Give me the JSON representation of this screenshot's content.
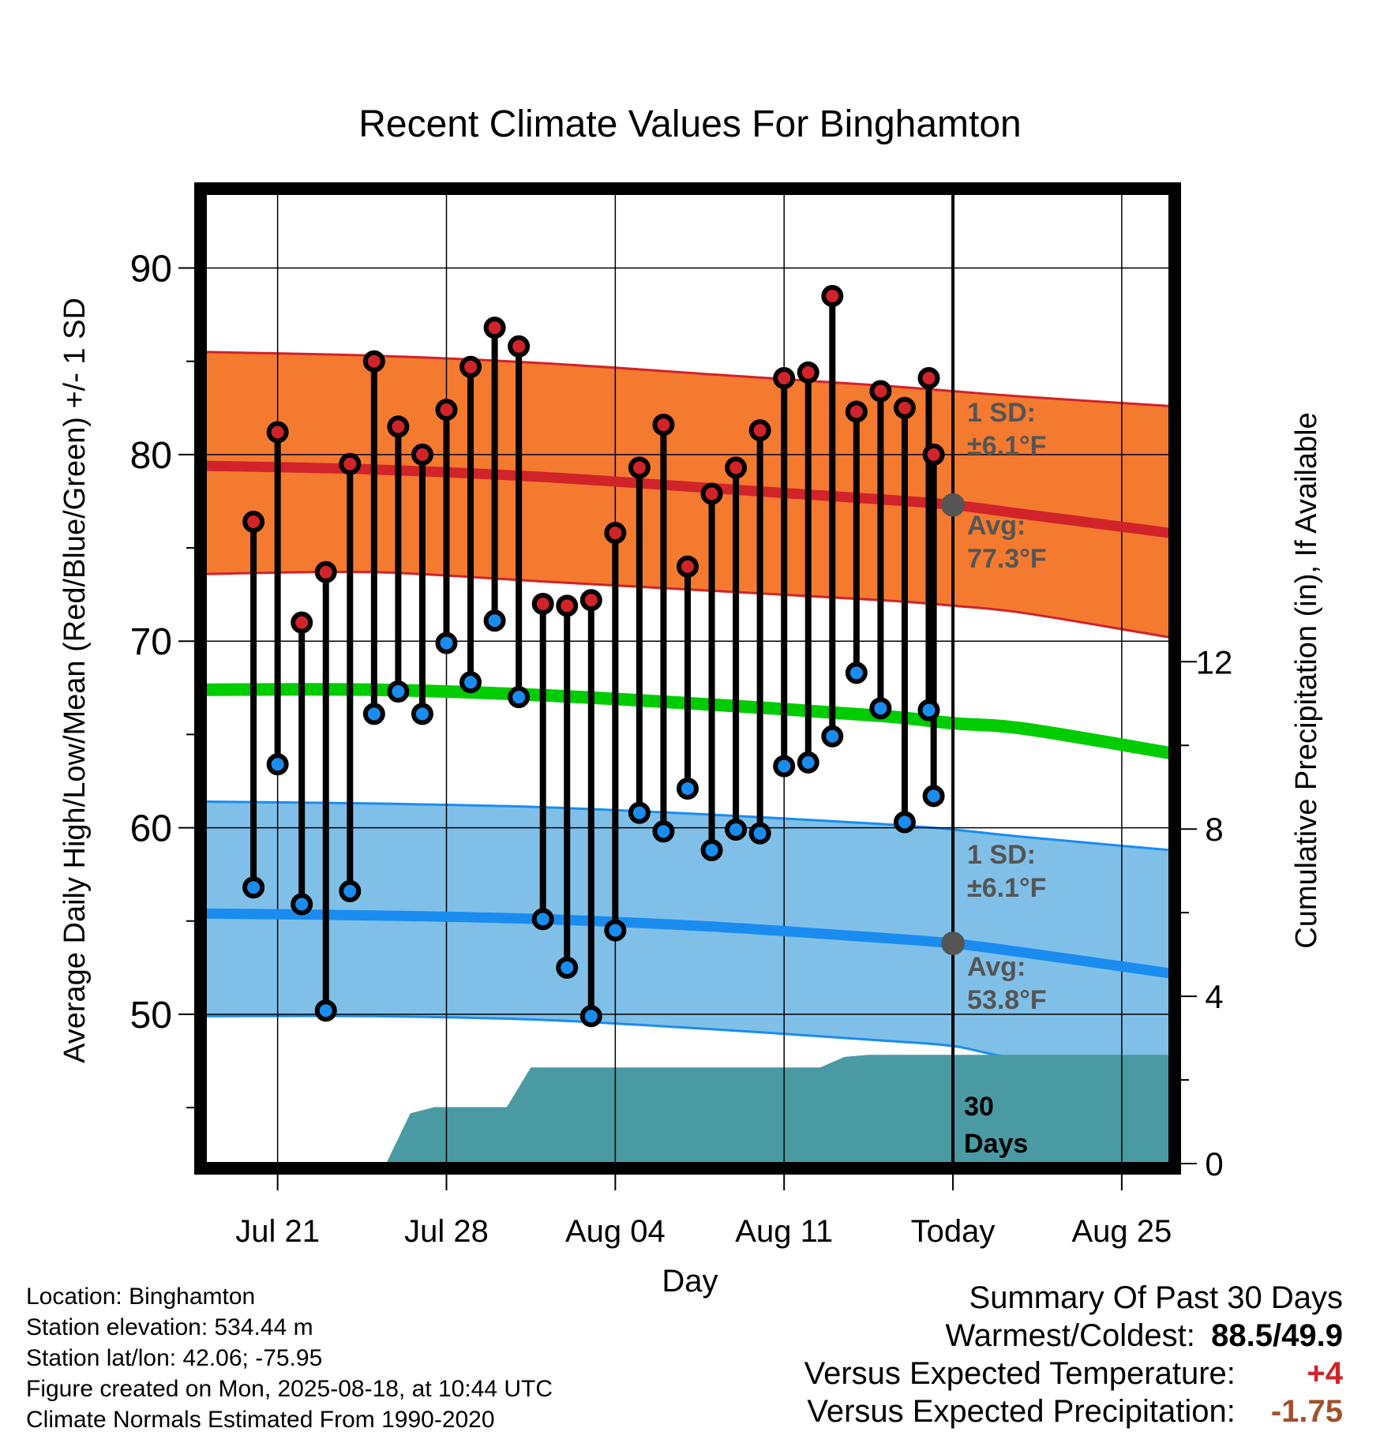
{
  "chart_data": {
    "type": "line",
    "title": "Recent Climate Values For Binghamton",
    "xlabel": "Day",
    "ylabel": "Average Daily High/Low/Mean (Red/Blue/Green) +/- 1 SD",
    "y2label": "Cumulative Precipitation (in), If Available",
    "x_tick_labels": [
      "Jul 21",
      "Jul 28",
      "Aug 04",
      "Aug 11",
      "Today",
      "Aug 25"
    ],
    "x_tick_days": [
      21,
      28,
      35,
      42,
      49,
      56
    ],
    "xlim": [
      18,
      58
    ],
    "ylim": [
      42,
      94
    ],
    "y_ticks": [
      50,
      60,
      70,
      80,
      90
    ],
    "y2lim": [
      0,
      23.2
    ],
    "y2_ticks": [
      0,
      4,
      8,
      12
    ],
    "today_day": 49,
    "daily_days": [
      20,
      21,
      22,
      23,
      24,
      25,
      26,
      27,
      28,
      29,
      30,
      31,
      32,
      33,
      34,
      35,
      36,
      37,
      38,
      39,
      40,
      41,
      42,
      43,
      44,
      45,
      46,
      47,
      48
    ],
    "daily_high": [
      76.4,
      81.2,
      71.0,
      73.7,
      79.5,
      85.0,
      81.5,
      80.0,
      82.4,
      84.7,
      86.8,
      85.8,
      72.0,
      71.9,
      72.2,
      75.8,
      79.3,
      81.6,
      74.0,
      77.9,
      79.3,
      81.3,
      84.1,
      84.4,
      88.5,
      82.3,
      83.4,
      82.5,
      84.1
    ],
    "daily_low": [
      56.8,
      63.4,
      55.9,
      50.2,
      56.6,
      66.1,
      67.3,
      66.1,
      69.9,
      67.8,
      71.1,
      67.0,
      55.1,
      52.5,
      49.9,
      54.5,
      60.8,
      59.8,
      62.1,
      58.8,
      59.9,
      59.7,
      63.3,
      63.5,
      64.9,
      68.3,
      66.4,
      60.3,
      66.3
    ],
    "daily_high_last": 80.0,
    "daily_low_last": 61.7,
    "normals_days": [
      18,
      25,
      32,
      39,
      46,
      49,
      52,
      58
    ],
    "avg_high": [
      79.4,
      79.2,
      78.8,
      78.2,
      77.6,
      77.3,
      76.8,
      75.8
    ],
    "high_sd_upper": [
      85.5,
      85.3,
      84.9,
      84.3,
      83.7,
      83.4,
      83.1,
      82.6
    ],
    "high_sd_lower": [
      73.6,
      73.7,
      73.2,
      72.7,
      72.2,
      71.9,
      71.5,
      70.2
    ],
    "avg_mean": [
      67.4,
      67.4,
      67.1,
      66.6,
      66.0,
      65.6,
      65.3,
      64.0
    ],
    "avg_low": [
      55.4,
      55.3,
      55.1,
      54.7,
      54.1,
      53.8,
      53.3,
      52.2
    ],
    "low_sd_upper": [
      61.4,
      61.3,
      61.1,
      60.7,
      60.2,
      59.9,
      59.5,
      58.8
    ],
    "low_sd_lower": [
      49.9,
      49.9,
      49.7,
      49.2,
      48.6,
      48.3,
      47.6,
      47.3
    ],
    "precip_days": [
      21.5,
      22.5,
      23.5,
      24.5,
      25.5,
      26.5,
      27.5,
      28.5,
      29.5,
      30.5,
      31.5,
      32.5,
      33.5,
      34.5,
      35.5,
      36.5,
      37.5,
      38.5,
      39.5,
      40.5,
      41.5,
      42.5,
      43.5,
      44.5,
      45.5,
      49,
      58
    ],
    "precip_cum": [
      0,
      0,
      0,
      0,
      0,
      1.2,
      1.35,
      1.35,
      1.35,
      1.35,
      2.3,
      2.3,
      2.3,
      2.3,
      2.3,
      2.3,
      2.3,
      2.3,
      2.3,
      2.3,
      2.3,
      2.3,
      2.3,
      2.55,
      2.6,
      2.6,
      2.6
    ],
    "high_annotation": {
      "sd_label": "1 SD:",
      "sd_value": "±6.1°F",
      "avg_label": "Avg:",
      "avg_value": "77.3°F"
    },
    "low_annotation": {
      "sd_label": "1 SD:",
      "sd_value": "±6.1°F",
      "avg_label": "Avg:",
      "avg_value": "53.8°F"
    },
    "period_label_1": "30",
    "period_label_2": "Days"
  },
  "colors": {
    "high_band": "#f47a30",
    "high_line": "#d0232a",
    "mean_line": "#00cc00",
    "low_band": "#80c0e8",
    "low_line": "#1a8cf0",
    "precip": "#4a9aa4",
    "high_dot": "#d0232a",
    "low_dot": "#1a8cf0",
    "annotation_text": "#555555",
    "warm_value": "#d0232a",
    "precip_value": "#a0522d"
  },
  "footer": {
    "location": "Location: Binghamton",
    "elevation": "Station elevation: 534.44 m",
    "latlon": "Station lat/lon: 42.06; -75.95",
    "created": "Figure created on Mon, 2025-08-18, at 10:44 UTC",
    "normals": "Climate Normals Estimated From 1990-2020"
  },
  "summary": {
    "title": "Summary Of Past 30 Days",
    "warm_cold_label": "Warmest/Coldest:",
    "warm_cold_value": "88.5/49.9",
    "temp_label": "Versus Expected Temperature:",
    "temp_value": "+4",
    "precip_label": "Versus Expected Precipitation:",
    "precip_value": "-1.75"
  }
}
